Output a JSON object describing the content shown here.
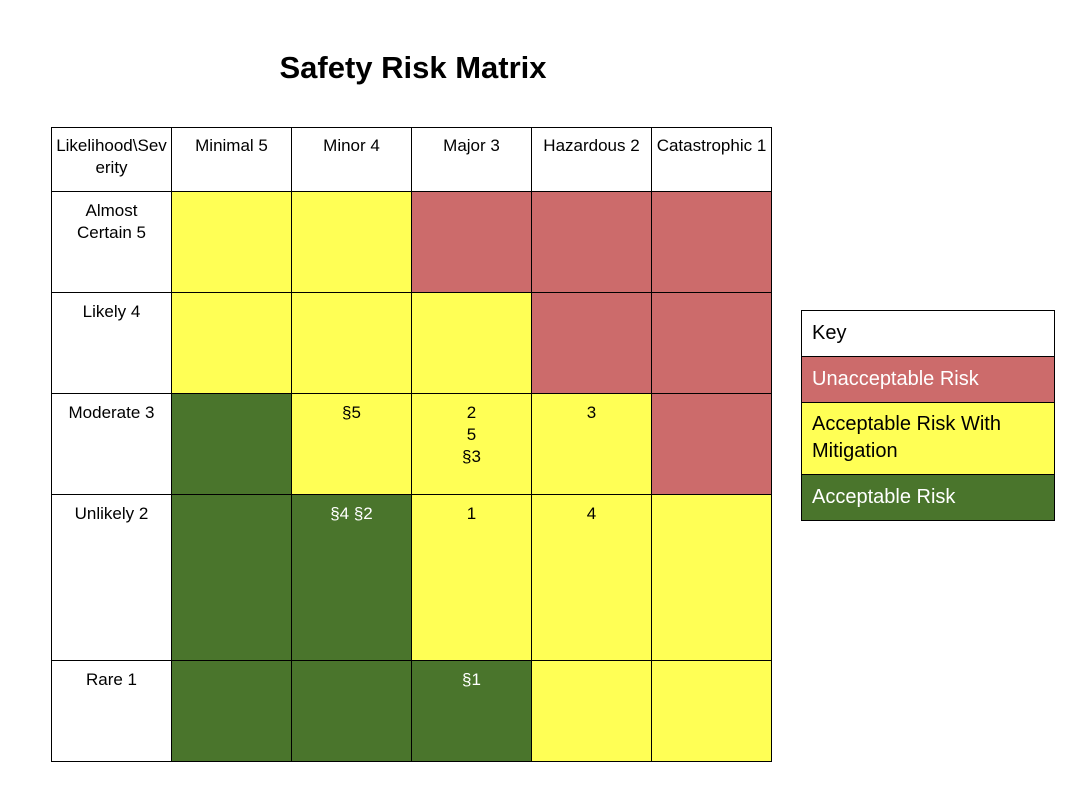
{
  "title": "Safety Risk Matrix",
  "colors": {
    "unacceptable": "#cc6b6b",
    "mitigation": "#ffff55",
    "acceptable": "#4a752c",
    "header": "#ffffff"
  },
  "matrix": {
    "corner": "Likelihood\\Severity",
    "columns": [
      "Minimal 5",
      "Minor 4",
      "Major 3",
      "Hazardous 2",
      "Catastrophic 1"
    ],
    "rows": [
      {
        "label": "Almost Certain 5",
        "cells": [
          {
            "level": "mitigation",
            "marks": []
          },
          {
            "level": "mitigation",
            "marks": []
          },
          {
            "level": "unacceptable",
            "marks": []
          },
          {
            "level": "unacceptable",
            "marks": []
          },
          {
            "level": "unacceptable",
            "marks": []
          }
        ]
      },
      {
        "label": "Likely 4",
        "cells": [
          {
            "level": "mitigation",
            "marks": []
          },
          {
            "level": "mitigation",
            "marks": []
          },
          {
            "level": "mitigation",
            "marks": []
          },
          {
            "level": "unacceptable",
            "marks": []
          },
          {
            "level": "unacceptable",
            "marks": []
          }
        ]
      },
      {
        "label": "Moderate 3",
        "cells": [
          {
            "level": "acceptable",
            "marks": []
          },
          {
            "level": "mitigation",
            "marks": [
              "§5"
            ]
          },
          {
            "level": "mitigation",
            "marks": [
              "2",
              "5",
              "§3"
            ]
          },
          {
            "level": "mitigation",
            "marks": [
              "3"
            ]
          },
          {
            "level": "unacceptable",
            "marks": []
          }
        ]
      },
      {
        "label": "Unlikely 2",
        "cells": [
          {
            "level": "acceptable",
            "marks": []
          },
          {
            "level": "acceptable",
            "marks": [
              "§4 §2"
            ]
          },
          {
            "level": "mitigation",
            "marks": [
              "1"
            ]
          },
          {
            "level": "mitigation",
            "marks": [
              "4"
            ]
          },
          {
            "level": "mitigation",
            "marks": []
          }
        ]
      },
      {
        "label": "Rare 1",
        "cells": [
          {
            "level": "acceptable",
            "marks": []
          },
          {
            "level": "acceptable",
            "marks": []
          },
          {
            "level": "acceptable",
            "marks": [
              "§1"
            ]
          },
          {
            "level": "mitigation",
            "marks": []
          },
          {
            "level": "mitigation",
            "marks": []
          }
        ]
      }
    ]
  },
  "legend": {
    "title": "Key",
    "items": [
      {
        "level": "unacceptable",
        "label": "Unacceptable Risk"
      },
      {
        "level": "mitigation",
        "label": "Acceptable Risk With Mitigation"
      },
      {
        "level": "acceptable",
        "label": "Acceptable Risk"
      }
    ]
  }
}
